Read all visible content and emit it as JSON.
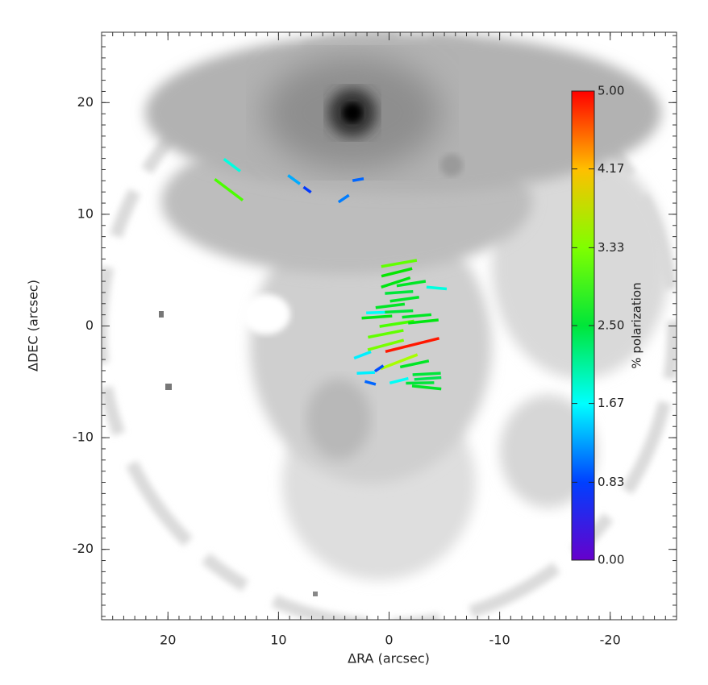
{
  "chart_data": {
    "type": "vector",
    "x_label": "ΔRA (arcsec)",
    "y_label": "ΔDEC (arcsec)",
    "xlim": [
      26,
      -26
    ],
    "ylim": [
      -26.3,
      26.3
    ],
    "xticks": [
      20,
      10,
      0,
      -10,
      -20
    ],
    "yticks": [
      20,
      10,
      0,
      -10,
      -20
    ],
    "x": [
      14.2,
      14.5,
      8.6,
      7.4,
      2.8,
      4.1,
      -0.9,
      -0.7,
      -0.6,
      -2.0,
      -4.3,
      -0.9,
      -1.4,
      -0.1,
      1.2,
      -0.9,
      1.1,
      -2.5,
      -0.7,
      -3.1,
      0.3,
      0.3,
      -2.1,
      2.4,
      -0.9,
      -2.3,
      2.1,
      0.9,
      1.7,
      -0.9,
      -3.4,
      -3.5,
      -3.4,
      -2.8
    ],
    "y": [
      14.4,
      12.2,
      13.1,
      12.2,
      13.1,
      11.4,
      5.6,
      4.8,
      3.9,
      3.8,
      3.4,
      3.0,
      2.4,
      1.8,
      1.2,
      1.3,
      0.8,
      0.9,
      0.2,
      0.4,
      -0.7,
      -1.7,
      -1.7,
      -2.6,
      -3.2,
      -3.4,
      -4.2,
      -3.8,
      -5.1,
      -4.9,
      -4.3,
      -4.7,
      -5.5,
      -5.1
    ],
    "values": [
      1.8,
      3.1,
      1.3,
      0.8,
      1.0,
      1.1,
      3.2,
      2.8,
      2.7,
      2.6,
      1.8,
      2.5,
      2.6,
      2.6,
      1.7,
      2.5,
      2.7,
      2.6,
      3.1,
      2.7,
      3.2,
      3.3,
      4.9,
      1.6,
      3.5,
      2.6,
      1.6,
      0.9,
      1.0,
      1.7,
      2.5,
      2.4,
      2.6,
      2.5
    ],
    "angle": [
      53,
      53,
      54,
      54,
      100,
      124,
      100,
      104,
      108,
      99,
      85,
      94,
      98,
      97,
      92,
      93,
      94,
      95,
      99,
      96,
      101,
      105,
      104,
      111,
      111,
      102,
      93,
      124,
      75,
      104,
      93,
      94,
      84,
      91
    ],
    "colorbar": {
      "label": "% polarization",
      "clim": [
        0,
        5
      ],
      "ticks": [
        {
          "value": 0,
          "label": "0.00"
        },
        0.83,
        1.67,
        {
          "value": 2.5,
          "label": "2.50"
        },
        3.33,
        4.17,
        {
          "value": 5,
          "label": "5.00"
        }
      ],
      "colormap": "rainbow"
    }
  }
}
